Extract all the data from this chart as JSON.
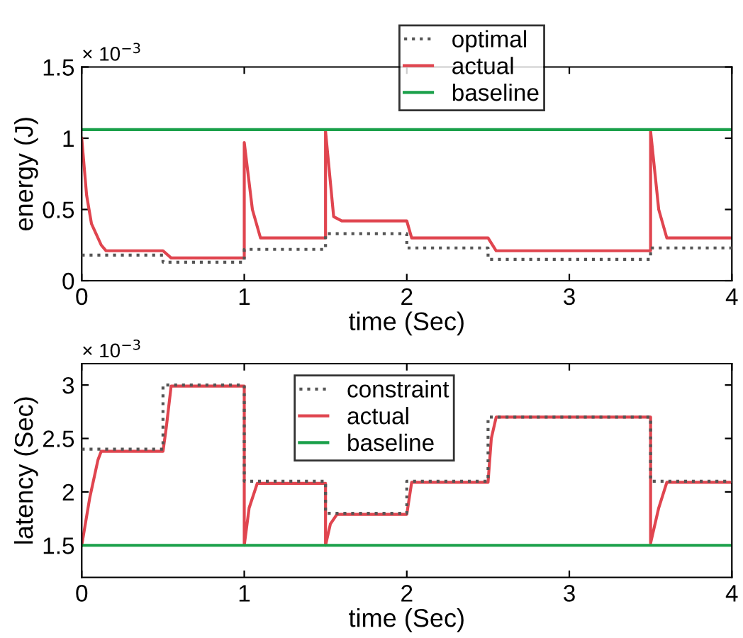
{
  "chart_data": [
    {
      "type": "line",
      "xlabel": "time (Sec)",
      "ylabel": "energy (J)",
      "annotations": [
        "× 10$^{−3}$"
      ],
      "xlim": [
        0,
        4
      ],
      "xticks": [
        0,
        1,
        2,
        3,
        4
      ],
      "ylim": [
        0,
        1.5
      ],
      "yticks": [
        0,
        0.5,
        1,
        1.5
      ],
      "grid": false,
      "legend": "top",
      "series": [
        {
          "name": "optimal",
          "color": "#555555",
          "line_style": "dotted",
          "x": [
            0,
            0.5,
            0.5,
            1,
            1,
            1.5,
            1.5,
            2,
            2,
            2.5,
            2.5,
            3.5,
            3.5,
            4
          ],
          "values": [
            0.18,
            0.18,
            0.13,
            0.13,
            0.22,
            0.22,
            0.33,
            0.33,
            0.23,
            0.23,
            0.15,
            0.15,
            0.23,
            0.23
          ]
        },
        {
          "name": "actual",
          "color": "#e0454f",
          "line_style": "solid",
          "x": [
            0,
            0.03,
            0.06,
            0.12,
            0.15,
            0.5,
            0.55,
            1,
            1,
            1.05,
            1.1,
            1.5,
            1.5,
            1.55,
            1.6,
            2,
            2.03,
            2.5,
            2.55,
            3.5,
            3.5,
            3.55,
            3.6,
            4
          ],
          "values": [
            1.0,
            0.6,
            0.4,
            0.25,
            0.21,
            0.21,
            0.16,
            0.16,
            0.97,
            0.5,
            0.3,
            0.3,
            1.05,
            0.45,
            0.42,
            0.42,
            0.3,
            0.3,
            0.21,
            0.21,
            1.05,
            0.5,
            0.3,
            0.3
          ]
        },
        {
          "name": "baseline",
          "color": "#1aa04a",
          "line_style": "solid",
          "x": [
            0,
            4
          ],
          "values": [
            1.06,
            1.06
          ]
        }
      ]
    },
    {
      "type": "line",
      "xlabel": "time (Sec)",
      "ylabel": "latency (Sec)",
      "annotations": [
        "× 10$^{−3}$"
      ],
      "xlim": [
        0,
        4
      ],
      "xticks": [
        0,
        1,
        2,
        3,
        4
      ],
      "ylim": [
        1.2,
        3.2
      ],
      "yticks": [
        1.5,
        2,
        2.5,
        3
      ],
      "grid": false,
      "legend": "top",
      "series": [
        {
          "name": "constraint",
          "color": "#555555",
          "line_style": "dotted",
          "x": [
            0,
            0.5,
            0.5,
            1,
            1,
            1.5,
            1.5,
            2,
            2,
            2.5,
            2.5,
            3.5,
            3.5,
            4
          ],
          "values": [
            2.4,
            2.4,
            3.0,
            3.0,
            2.1,
            2.1,
            1.8,
            1.8,
            2.1,
            2.1,
            2.7,
            2.7,
            2.1,
            2.1
          ]
        },
        {
          "name": "actual",
          "color": "#e0454f",
          "line_style": "solid",
          "x": [
            0,
            0.05,
            0.1,
            0.12,
            0.5,
            0.52,
            0.55,
            1,
            1,
            1.03,
            1.08,
            1.5,
            1.5,
            1.53,
            1.57,
            2,
            2.03,
            2.5,
            2.52,
            2.55,
            3.5,
            3.5,
            3.55,
            3.6,
            4
          ],
          "values": [
            1.5,
            1.95,
            2.3,
            2.38,
            2.38,
            2.6,
            2.99,
            2.99,
            1.5,
            1.85,
            2.08,
            2.08,
            1.5,
            1.7,
            1.79,
            1.79,
            2.09,
            2.09,
            2.5,
            2.7,
            2.7,
            1.52,
            1.85,
            2.09,
            2.09
          ]
        },
        {
          "name": "baseline",
          "color": "#1aa04a",
          "line_style": "solid",
          "x": [
            0,
            4
          ],
          "values": [
            1.5,
            1.5
          ]
        }
      ]
    }
  ]
}
